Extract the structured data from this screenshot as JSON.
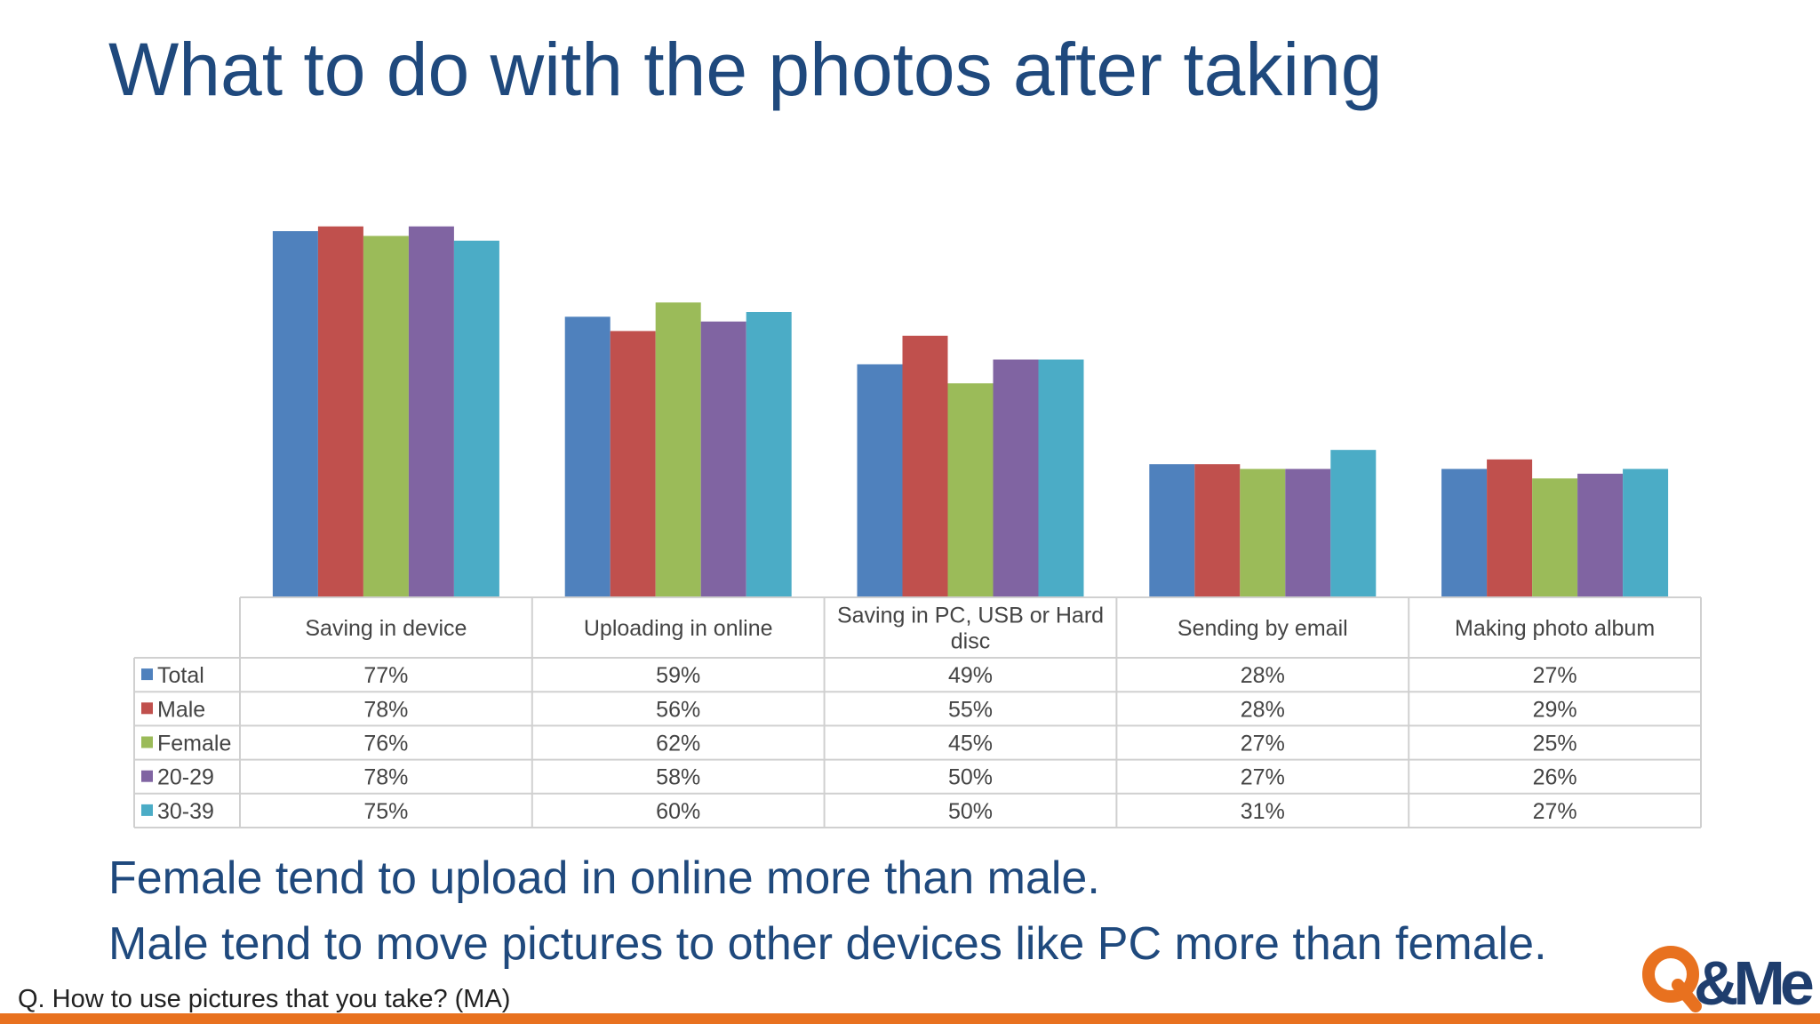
{
  "slide": {
    "title": "What to do with the photos after taking",
    "findings": [
      "Female tend to upload in online more than male.",
      "Male tend to move pictures to other devices like PC more than female."
    ],
    "question": "Q. How to use pictures that you take? (MA)",
    "logo_text": "Q&Me",
    "accent_color": "#e8711f",
    "title_color": "#1f497d"
  },
  "chart_data": {
    "type": "bar",
    "categories": [
      "Saving in device",
      "Uploading in online",
      "Saving in PC, USB or Hard disc",
      "Sending by email",
      "Making photo album"
    ],
    "category_lines": [
      [
        "Saving in device"
      ],
      [
        "Uploading in online"
      ],
      [
        "Saving in PC, USB or Hard",
        "disc"
      ],
      [
        "Sending by email"
      ],
      [
        "Making photo album"
      ]
    ],
    "ylim": [
      0,
      80
    ],
    "grid": false,
    "legend": "data-table",
    "series": [
      {
        "name": "Total",
        "color": "#4f81bd",
        "values": [
          77,
          59,
          49,
          28,
          27
        ],
        "labels": [
          "77%",
          "59%",
          "49%",
          "28%",
          "27%"
        ]
      },
      {
        "name": "Male",
        "color": "#c0504d",
        "values": [
          78,
          56,
          55,
          28,
          29
        ],
        "labels": [
          "78%",
          "56%",
          "55%",
          "28%",
          "29%"
        ]
      },
      {
        "name": "Female",
        "color": "#9bbb59",
        "values": [
          76,
          62,
          45,
          27,
          25
        ],
        "labels": [
          "76%",
          "62%",
          "45%",
          "27%",
          "25%"
        ]
      },
      {
        "name": "20-29",
        "color": "#8064a2",
        "values": [
          78,
          58,
          50,
          27,
          26
        ],
        "labels": [
          "78%",
          "58%",
          "50%",
          "27%",
          "26%"
        ]
      },
      {
        "name": "30-39",
        "color": "#4bacc6",
        "values": [
          75,
          60,
          50,
          31,
          27
        ],
        "labels": [
          "75%",
          "60%",
          "50%",
          "31%",
          "27%"
        ]
      }
    ]
  }
}
